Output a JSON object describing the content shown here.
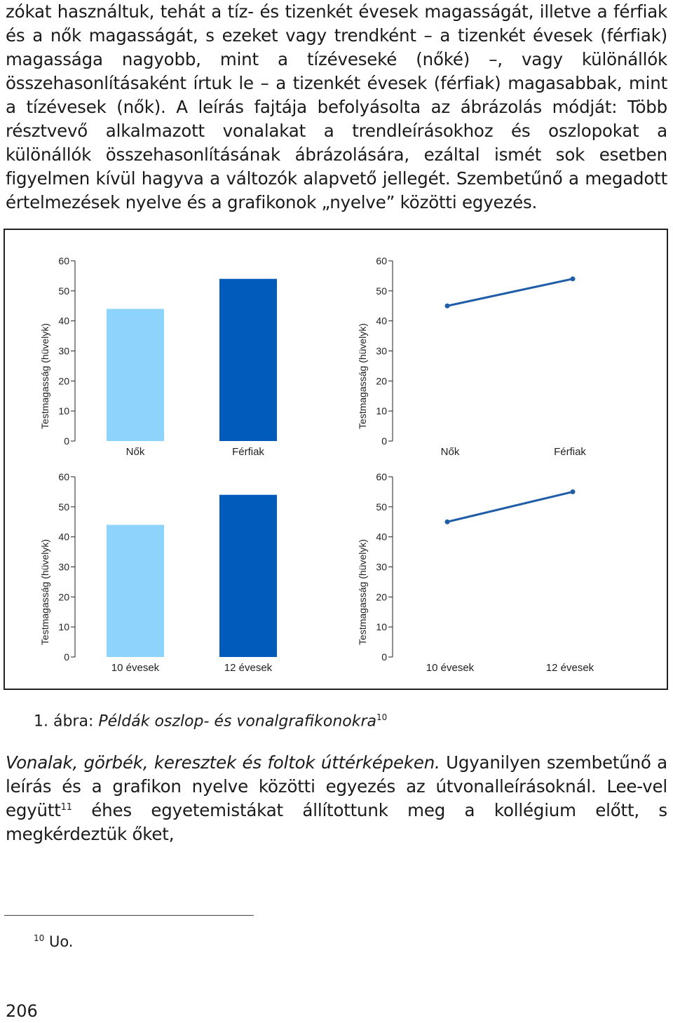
{
  "body": {
    "para_top": "zókat használtuk, tehát a tíz- és tizenkét évesek magasságát, illetve a férfiak és a nők magasságát, s ezeket vagy trendként – a tizenkét évesek (férfiak) magassága nagyobb, mint a tízéveseké (nőké) –, vagy különállók összehasonlításaként írtuk le – a tizenkét évesek (férfiak) magasabbak, mint a tízévesek (nők). A leírás fajtája befolyásolta az ábrázolás módját: Több résztvevő alkalmazott vonalakat a trendleírásokhoz és oszlopokat a különállók összehasonlításának ábrázolására, ezáltal ismét sok esetben figyelmen kívül hagyva a változók alapvető jellegét. Szembetűnő a megadott értelmezések nyelve és a grafikonok „nyelve” közötti egyezés.",
    "para_bottom_italic": "Vonalak, görbék, keresztek és foltok úttérképeken.",
    "para_bottom_rest": " Ugyanilyen szembetűnő a leírás és a grafikon nyelve közötti egyezés az útvonalleírásoknál. Lee-vel együtt",
    "para_bottom_sup": "11",
    "para_bottom_end": " éhes egyetemistákat állítottunk meg a kollégium előtt, s megkérdeztük őket,"
  },
  "caption": {
    "prefix": "1. ábra: ",
    "title": "Példák oszlop- és vonalgrafikonokra",
    "sup": "10"
  },
  "footnote": {
    "num": "10",
    "text": " Uo."
  },
  "page_number": "206",
  "colors": {
    "light_bar": "#8ed3fb",
    "dark_bar": "#005bbb",
    "line": "#1f5da8"
  },
  "chart_data": [
    {
      "type": "bar",
      "categories": [
        "Nők",
        "Férfiak"
      ],
      "values": [
        44,
        54
      ],
      "ylabel": "Testmagasság (hüvelyk)",
      "yticks": [
        "0",
        "10",
        "20",
        "30",
        "40",
        "50",
        "60"
      ],
      "ylim": [
        0,
        60
      ]
    },
    {
      "type": "line",
      "categories": [
        "Nők",
        "Férfiak"
      ],
      "values": [
        45,
        54
      ],
      "ylabel": "Testmagasság (hüvelyk)",
      "yticks": [
        "0",
        "10",
        "20",
        "30",
        "40",
        "50",
        "60"
      ],
      "ylim": [
        0,
        60
      ]
    },
    {
      "type": "bar",
      "categories": [
        "10 évesek",
        "12 évesek"
      ],
      "values": [
        44,
        54
      ],
      "ylabel": "Testmagasság (hüvelyk)",
      "yticks": [
        "0",
        "10",
        "20",
        "30",
        "40",
        "50",
        "60"
      ],
      "ylim": [
        0,
        60
      ]
    },
    {
      "type": "line",
      "categories": [
        "10 évesek",
        "12 évesek"
      ],
      "values": [
        45,
        55
      ],
      "ylabel": "Testmagasság (hüvelyk)",
      "yticks": [
        "0",
        "10",
        "20",
        "30",
        "40",
        "50",
        "60"
      ],
      "ylim": [
        0,
        60
      ]
    }
  ]
}
